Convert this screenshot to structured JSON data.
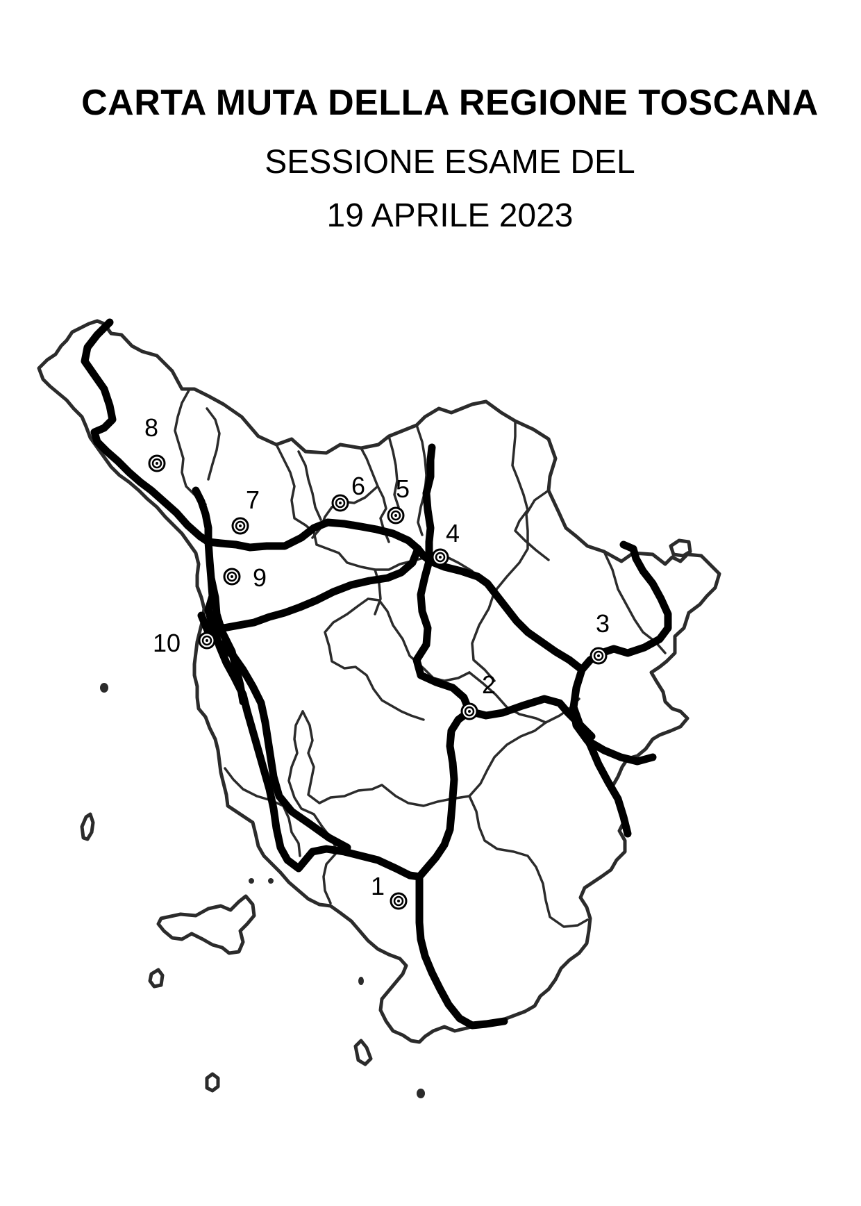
{
  "title": {
    "main": "CARTA MUTA DELLA REGIONE TOSCANA",
    "session": "SESSIONE ESAME DEL",
    "date": "19 APRILE 2023"
  },
  "map": {
    "region": "Toscana",
    "colors": {
      "borders": "#2b2b2b",
      "routes": "#000000",
      "background": "#ffffff"
    },
    "markers": [
      {
        "id": "1",
        "label": "1"
      },
      {
        "id": "2",
        "label": "2"
      },
      {
        "id": "3",
        "label": "3"
      },
      {
        "id": "4",
        "label": "4"
      },
      {
        "id": "5",
        "label": "5"
      },
      {
        "id": "6",
        "label": "6"
      },
      {
        "id": "7",
        "label": "7"
      },
      {
        "id": "8",
        "label": "8"
      },
      {
        "id": "9",
        "label": "9"
      },
      {
        "id": "10",
        "label": "10"
      }
    ]
  }
}
